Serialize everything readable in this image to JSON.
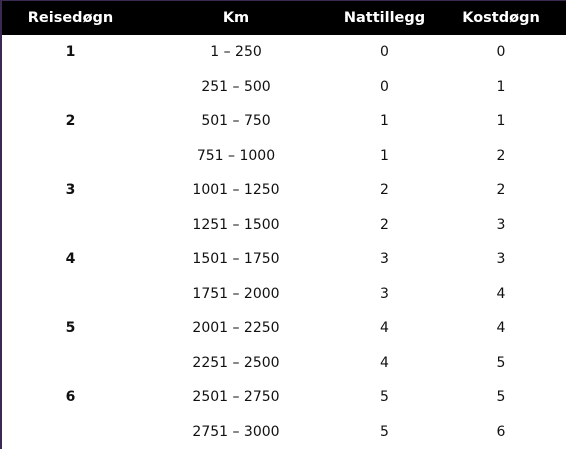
{
  "table": {
    "headers": [
      "Reisedøgn",
      "Km",
      "Nattillegg",
      "Kostdøgn"
    ],
    "rows": [
      {
        "reisedogn": "1",
        "km": "1 – 250",
        "nattillegg": "0",
        "kostdogn": "0"
      },
      {
        "reisedogn": "",
        "km": "251 – 500",
        "nattillegg": "0",
        "kostdogn": "1"
      },
      {
        "reisedogn": "2",
        "km": "501 – 750",
        "nattillegg": "1",
        "kostdogn": "1"
      },
      {
        "reisedogn": "",
        "km": "751 – 1000",
        "nattillegg": "1",
        "kostdogn": "2"
      },
      {
        "reisedogn": "3",
        "km": "1001 – 1250",
        "nattillegg": "2",
        "kostdogn": "2"
      },
      {
        "reisedogn": "",
        "km": "1251 – 1500",
        "nattillegg": "2",
        "kostdogn": "3"
      },
      {
        "reisedogn": "4",
        "km": "1501 – 1750",
        "nattillegg": "3",
        "kostdogn": "3"
      },
      {
        "reisedogn": "",
        "km": "1751 – 2000",
        "nattillegg": "3",
        "kostdogn": "4"
      },
      {
        "reisedogn": "5",
        "km": "2001 – 2250",
        "nattillegg": "4",
        "kostdogn": "4"
      },
      {
        "reisedogn": "",
        "km": "2251 – 2500",
        "nattillegg": "4",
        "kostdogn": "5"
      },
      {
        "reisedogn": "6",
        "km": "2501 – 2750",
        "nattillegg": "5",
        "kostdogn": "5"
      },
      {
        "reisedogn": "",
        "km": "2751 – 3000",
        "nattillegg": "5",
        "kostdogn": "6"
      }
    ]
  }
}
